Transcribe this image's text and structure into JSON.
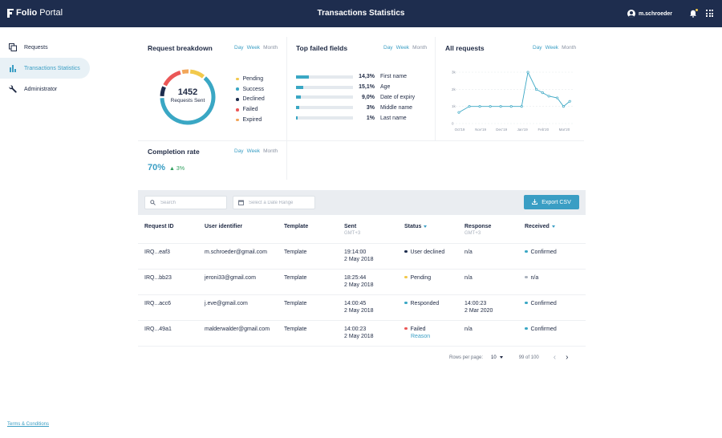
{
  "header": {
    "logo_primary": "Folio",
    "logo_secondary": "Portal",
    "title": "Transactions Statistics",
    "username": "m.schroeder"
  },
  "sidebar": {
    "items": [
      {
        "label": "Requests",
        "icon": "copy-icon",
        "active": false
      },
      {
        "label": "Transactions Statistics",
        "icon": "bar-chart-icon",
        "active": true
      },
      {
        "label": "Administrator",
        "icon": "wrench-icon",
        "active": false
      }
    ],
    "terms": "Terms & Conditions"
  },
  "periods": {
    "day": "Day",
    "week": "Week",
    "month": "Month"
  },
  "request_breakdown": {
    "title": "Request breakdown",
    "total": "1452",
    "total_label": "Requests Sent",
    "legend": [
      {
        "label": "Pending",
        "color": "#f2c94c"
      },
      {
        "label": "Success",
        "color": "#3aa7c4"
      },
      {
        "label": "Declined",
        "color": "#1e2d4e"
      },
      {
        "label": "Failed",
        "color": "#eb5757"
      },
      {
        "label": "Expired",
        "color": "#f2a65a"
      }
    ],
    "ring": [
      {
        "name": "Pending",
        "value": 0.09,
        "color": "#f2c94c"
      },
      {
        "name": "Success",
        "value": 0.64,
        "color": "#3aa7c4"
      },
      {
        "name": "Declined",
        "value": 0.06,
        "color": "#1e2d4e"
      },
      {
        "name": "Failed",
        "value": 0.13,
        "color": "#eb5757"
      },
      {
        "name": "Expired",
        "value": 0.04,
        "color": "#f2a65a"
      }
    ]
  },
  "top_failed_fields": {
    "title": "Top failed fields",
    "rows": [
      {
        "percent": "14,3%",
        "label": "First name",
        "fill": 0.22
      },
      {
        "percent": "15,1%",
        "label": "Age",
        "fill": 0.12
      },
      {
        "percent": "9,0%",
        "label": "Date of expiry",
        "fill": 0.08
      },
      {
        "percent": "3%",
        "label": "Middle name",
        "fill": 0.06
      },
      {
        "percent": "1%",
        "label": "Last name",
        "fill": 0.03
      }
    ]
  },
  "all_requests": {
    "title": "All requests"
  },
  "chart_data": {
    "type": "line",
    "title": "All requests",
    "categories": [
      "Oct'19",
      "Nov'19",
      "Dec'19",
      "Jan'19",
      "Feb'20",
      "Mar'20"
    ],
    "x": [
      0,
      0.5,
      1,
      1.5,
      2,
      2.5,
      3,
      3.3,
      3.7,
      4,
      4.3,
      4.7,
      5,
      5.3
    ],
    "series": [
      {
        "values": [
          650,
          1000,
          1000,
          1000,
          1000,
          1000,
          1000,
          3000,
          2000,
          1800,
          1600,
          1500,
          1000,
          1300
        ]
      }
    ],
    "yticks": [
      "0",
      "1k",
      "2k",
      "3k"
    ],
    "ylim": [
      0,
      3000
    ],
    "grid": true,
    "color": "#3aa7c4"
  },
  "completion_rate": {
    "title": "Completion rate",
    "value": "70%",
    "delta": "3%"
  },
  "toolbar": {
    "search_placeholder": "Search",
    "date_placeholder": "Select a Date Range",
    "export_label": "Export CSV"
  },
  "table": {
    "headers": {
      "request_id": "Request ID",
      "user_identifier": "User identifier",
      "template": "Template",
      "sent": "Sent",
      "sent_sub": "GMT+3",
      "status": "Status",
      "response": "Response",
      "response_sub": "GMT+3",
      "received": "Received"
    },
    "rows": [
      {
        "id": "IRQ...eaf3",
        "user": "m.schroeder@gmail.com",
        "template": "Template",
        "sent_time": "19:14:00",
        "sent_date": "2 May 2018",
        "status": "User declined",
        "status_color": "#1e2d4e",
        "response_time": "n/a",
        "response_date": "",
        "received": "Confirmed",
        "received_color": "#3aa7c4"
      },
      {
        "id": "IRQ...bb23",
        "user": "jeroni33@gmail.com",
        "template": "Template",
        "sent_time": "18:25:44",
        "sent_date": "2 May 2018",
        "status": "Pending",
        "status_color": "#f2c94c",
        "response_time": "n/a",
        "response_date": "",
        "received": "n/a",
        "received_color": "#a9b1bd"
      },
      {
        "id": "IRQ...acc6",
        "user": "j.eve@gmail.com",
        "template": "Template",
        "sent_time": "14:00:45",
        "sent_date": "2 May 2018",
        "status": "Responded",
        "status_color": "#3aa7c4",
        "response_time": "14:00:23",
        "response_date": "2 Mar 2020",
        "received": "Confirmed",
        "received_color": "#3aa7c4"
      },
      {
        "id": "IRQ...49a1",
        "user": "malderwalder@gmail.com",
        "template": "Template",
        "sent_time": "14:00:23",
        "sent_date": "2 May 2018",
        "status": "Failed",
        "status_color": "#eb5757",
        "reason": "Reason",
        "response_time": "n/a",
        "response_date": "",
        "received": "Confirmed",
        "received_color": "#3aa7c4"
      }
    ]
  },
  "pagination": {
    "rows_per_page_label": "Rows per page:",
    "rows_per_page": "10",
    "count": "99 of 100"
  }
}
